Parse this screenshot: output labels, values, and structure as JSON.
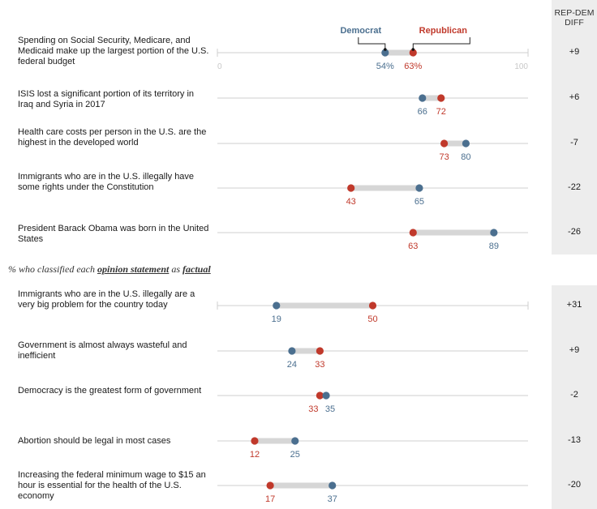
{
  "colors": {
    "democrat": "#4b6f8f",
    "republican": "#c0392b",
    "connector": "#d6d6d6",
    "axis": "#cfcfcf",
    "diff_bg": "#ededed"
  },
  "header": {
    "diff_label_line1": "REP-DEM",
    "diff_label_line2": "DIFF"
  },
  "legend": {
    "democrat": "Democrat",
    "republican": "Republican"
  },
  "axis_labels": {
    "min": "0",
    "max": "100"
  },
  "section2_title": {
    "prefix": "% who classified each ",
    "emph1": "opinion statement",
    "middle": " as ",
    "emph2": "factual"
  },
  "chart_data": [
    {
      "type": "dot-plot",
      "xlim": [
        0,
        100
      ],
      "series": [
        {
          "name": "Democrat"
        },
        {
          "name": "Republican"
        }
      ],
      "rows": [
        {
          "label": "Spending on Social Security, Medicare, and Medicaid make up the largest portion of the U.S. federal budget",
          "dem": 54,
          "rep": 63,
          "dem_label": "54%",
          "rep_label": "63%",
          "diff": "+9"
        },
        {
          "label": "ISIS lost a significant portion of its territory in Iraq and Syria in 2017",
          "dem": 66,
          "rep": 72,
          "dem_label": "66",
          "rep_label": "72",
          "diff": "+6"
        },
        {
          "label": "Health care costs per person in the U.S. are the highest in the developed world",
          "dem": 80,
          "rep": 73,
          "dem_label": "80",
          "rep_label": "73",
          "diff": "-7"
        },
        {
          "label": "Immigrants who are in the U.S. illegally have some rights under the Constitution",
          "dem": 65,
          "rep": 43,
          "dem_label": "65",
          "rep_label": "43",
          "diff": "-22"
        },
        {
          "label": "President Barack Obama was born in the United States",
          "dem": 89,
          "rep": 63,
          "dem_label": "89",
          "rep_label": "63",
          "diff": "-26"
        }
      ]
    },
    {
      "type": "dot-plot",
      "xlim": [
        0,
        100
      ],
      "series": [
        {
          "name": "Democrat"
        },
        {
          "name": "Republican"
        }
      ],
      "rows": [
        {
          "label": "Immigrants who are in the U.S. illegally are a very big problem for the country today",
          "dem": 19,
          "rep": 50,
          "dem_label": "19",
          "rep_label": "50",
          "diff": "+31"
        },
        {
          "label": "Government is almost always wasteful and inefficient",
          "dem": 24,
          "rep": 33,
          "dem_label": "24",
          "rep_label": "33",
          "diff": "+9"
        },
        {
          "label": "Democracy is the greatest form of government",
          "dem": 35,
          "rep": 33,
          "dem_label": "35",
          "rep_label": "33",
          "diff": "-2"
        },
        {
          "label": "Abortion should be legal in most cases",
          "dem": 25,
          "rep": 12,
          "dem_label": "25",
          "rep_label": "12",
          "diff": "-13"
        },
        {
          "label": "Increasing the federal minimum wage to $15 an hour is essential for the health of the U.S. economy",
          "dem": 37,
          "rep": 17,
          "dem_label": "37",
          "rep_label": "17",
          "diff": "-20"
        }
      ]
    }
  ]
}
